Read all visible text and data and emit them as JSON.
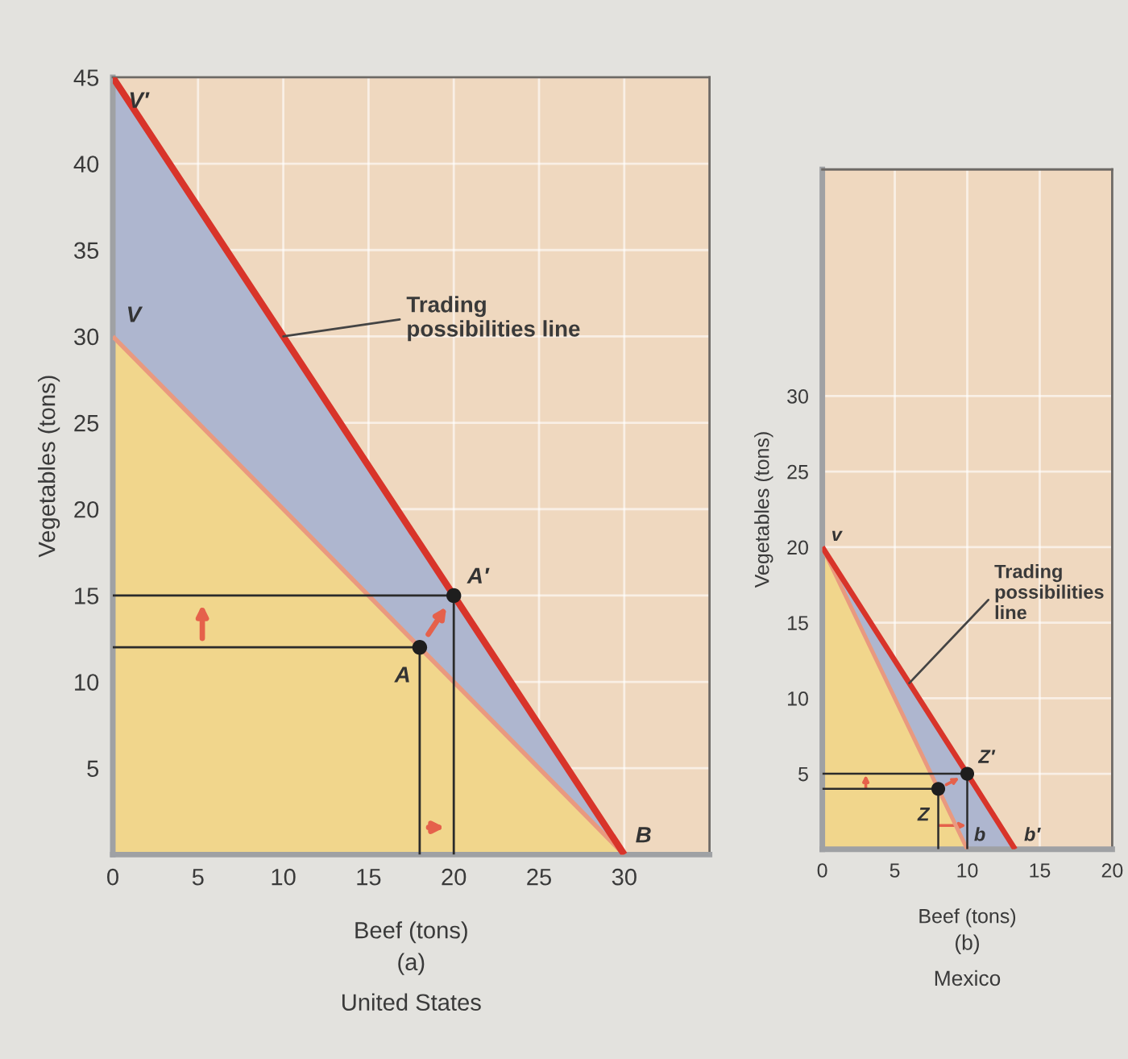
{
  "chart_data": [
    {
      "type": "line",
      "title": "(a)",
      "subtitle": "United States",
      "xlabel": "Beef (tons)",
      "ylabel": "Vegetables (tons)",
      "xlim": [
        0,
        35
      ],
      "ylim": [
        0,
        45
      ],
      "xticks": [
        {
          "value": 0,
          "label": "0"
        },
        5,
        10,
        15,
        20,
        25,
        30
      ],
      "yticks": [
        5,
        10,
        15,
        20,
        25,
        30,
        35,
        40,
        45
      ],
      "grid": true,
      "series": [
        {
          "color": "#e9997f",
          "x": [
            0,
            18,
            30
          ],
          "values": [
            30,
            12,
            0
          ],
          "lower": [
            0,
            0,
            0
          ],
          "upper": [
            30,
            12,
            0
          ]
        },
        {
          "color": "#d8342a",
          "x": [
            0,
            20,
            30
          ],
          "values": [
            45,
            15,
            0
          ],
          "lower": [
            30,
            10,
            0
          ],
          "upper": [
            45,
            15,
            0
          ]
        },
        {
          "color": "#2b2b2b",
          "x": [
            0,
            18,
            18
          ],
          "values": [
            12,
            12,
            0
          ]
        },
        {
          "color": "#2b2b2b",
          "x": [
            0,
            20,
            20
          ],
          "values": [
            15,
            15,
            0
          ]
        },
        {
          "type": "scatter",
          "color": "#1e1e1e",
          "marker": "circle",
          "x": [
            18,
            20
          ],
          "values": [
            12,
            15
          ]
        }
      ],
      "annotations": [
        {
          "text": "V′",
          "x": 0,
          "y": 45
        },
        {
          "text": "V",
          "x": 0,
          "y": 30
        },
        {
          "text": "A",
          "x": 18,
          "y": 12
        },
        {
          "text": "A′",
          "x": 20,
          "y": 15
        },
        {
          "text": "B",
          "x": 30,
          "y": 0
        },
        {
          "text": "Trading\npossibilities line",
          "x": 10,
          "y": 30
        }
      ]
    },
    {
      "type": "line",
      "title": "(b)",
      "subtitle": "Mexico",
      "xlabel": "Beef (tons)",
      "ylabel": "Vegetables (tons)",
      "xlim": [
        0,
        20
      ],
      "ylim": [
        0,
        45
      ],
      "xticks": [
        {
          "value": 0,
          "label": "0"
        },
        5,
        10,
        15,
        20
      ],
      "yticks": [
        5,
        10,
        15,
        20,
        25,
        30
      ],
      "grid": true,
      "series": [
        {
          "color": "#e9997f",
          "x": [
            0,
            8,
            10
          ],
          "values": [
            20,
            4,
            0
          ],
          "lower": [
            0,
            0,
            0
          ],
          "upper": [
            20,
            4,
            0
          ]
        },
        {
          "color": "#d8342a",
          "x": [
            0,
            10,
            13.3
          ],
          "values": [
            20,
            5,
            0
          ],
          "lower": [
            20,
            0,
            0
          ],
          "upper": [
            20,
            5,
            0
          ]
        },
        {
          "color": "#2b2b2b",
          "x": [
            0,
            8,
            8
          ],
          "values": [
            4,
            4,
            0
          ]
        },
        {
          "color": "#2b2b2b",
          "x": [
            0,
            10,
            10
          ],
          "values": [
            5,
            5,
            0
          ]
        },
        {
          "type": "scatter",
          "color": "#1e1e1e",
          "marker": "circle",
          "x": [
            8,
            10
          ],
          "values": [
            4,
            5
          ]
        }
      ],
      "annotations": [
        {
          "text": "v",
          "x": 0,
          "y": 20
        },
        {
          "text": "Z",
          "x": 8,
          "y": 4
        },
        {
          "text": "Z′",
          "x": 10,
          "y": 5
        },
        {
          "text": "b",
          "x": 10,
          "y": 0
        },
        {
          "text": "b′",
          "x": 13.3,
          "y": 0
        },
        {
          "text": "Trading\npossibilities\nline",
          "x": 6,
          "y": 11
        }
      ]
    }
  ]
}
